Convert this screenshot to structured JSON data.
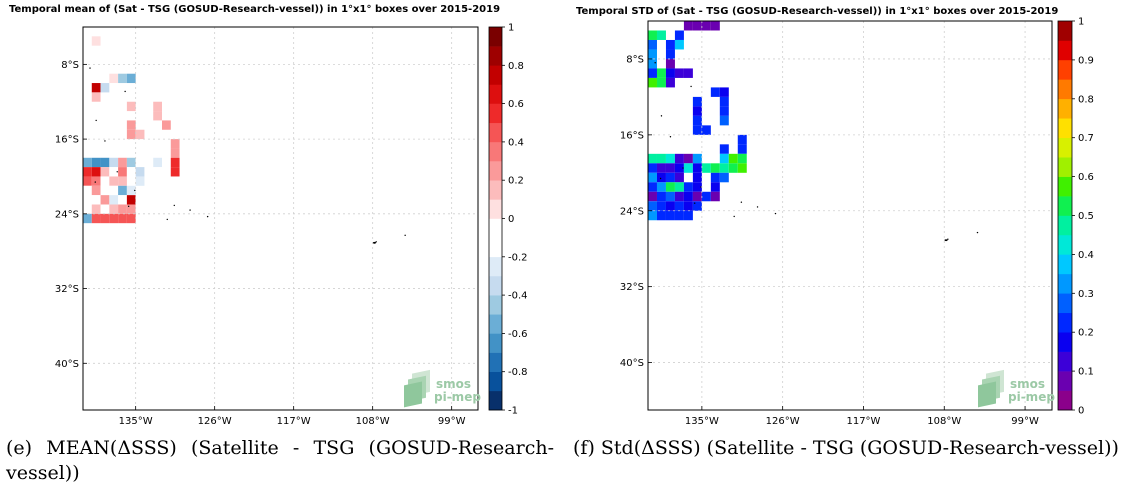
{
  "panels": [
    {
      "id": "e",
      "title": "Temporal mean of (Sat - TSG (GOSUD-Research-vessel)) in 1°x1° boxes over 2015-2019",
      "caption": "(e) MEAN(ΔSSS) (Satellite - TSG (GOSUD-Research-vessel))",
      "watermark": [
        "smos",
        "pi-mep"
      ]
    },
    {
      "id": "f",
      "title": "Temporal STD of (Sat - TSG (GOSUD-Research-vessel)) in 1°x1° boxes over 2015-2019",
      "caption": "(f) Std(ΔSSS) (Satellite - TSG (GOSUD-Research-vessel))",
      "watermark": [
        "smos",
        "pi-mep"
      ]
    }
  ],
  "chart_data": [
    {
      "type": "heatmap",
      "title": "Temporal mean of (Sat - TSG (GOSUD-Research-vessel)) in 1°x1° boxes over 2015-2019",
      "xlim": [
        -141,
        -96
      ],
      "ylim": [
        -45,
        -4
      ],
      "xticks": [
        {
          "value": -135,
          "label": "135°W"
        },
        {
          "value": -126,
          "label": "126°W"
        },
        {
          "value": -117,
          "label": "117°W"
        },
        {
          "value": -108,
          "label": "108°W"
        },
        {
          "value": -99,
          "label": "99°W"
        }
      ],
      "yticks": [
        {
          "value": -8,
          "label": "8°S"
        },
        {
          "value": -16,
          "label": "16°S"
        },
        {
          "value": -24,
          "label": "24°S"
        },
        {
          "value": -32,
          "label": "32°S"
        },
        {
          "value": -40,
          "label": "40°S"
        }
      ],
      "grid": true,
      "colorbar": {
        "min": -1,
        "max": 1,
        "ticks": [
          {
            "value": 1,
            "label": "1"
          },
          {
            "value": 0.8,
            "label": "0.8"
          },
          {
            "value": 0.6,
            "label": "0.6"
          },
          {
            "value": 0.4,
            "label": "0.4"
          },
          {
            "value": 0.2,
            "label": "0.2"
          },
          {
            "value": 0,
            "label": "0"
          },
          {
            "value": -0.2,
            "label": "-0.2"
          },
          {
            "value": -0.4,
            "label": "-0.4"
          },
          {
            "value": -0.6,
            "label": "-0.6"
          },
          {
            "value": -0.8,
            "label": "-0.8"
          },
          {
            "value": -1,
            "label": "-1"
          }
        ],
        "colors": [
          "#08306b",
          "#08519c",
          "#2171b5",
          "#4292c6",
          "#6baed6",
          "#9ecae1",
          "#c6dbef",
          "#deebf7",
          "#ffffff",
          "#ffffff",
          "#fee0e0",
          "#fcbcbc",
          "#fa9a9a",
          "#f87878",
          "#f55555",
          "#ee2a2a",
          "#dd0f0f",
          "#c20000",
          "#9e0000",
          "#7a0000"
        ]
      },
      "cells": [
        {
          "lon": -140,
          "lat": -5,
          "v": 0.05
        },
        {
          "lon": -137,
          "lat": -5,
          "v": -0.1
        },
        {
          "lon": -136,
          "lat": -5,
          "v": -0.15
        },
        {
          "lon": -139,
          "lat": -6,
          "v": -0.12
        },
        {
          "lon": -137,
          "lat": -6,
          "v": -0.15
        },
        {
          "lon": -138,
          "lat": -7,
          "v": -0.1
        },
        {
          "lon": -140,
          "lat": -8,
          "v": -0.13
        },
        {
          "lon": -138,
          "lat": -9,
          "v": 0.05
        },
        {
          "lon": -137,
          "lat": -9,
          "v": -0.5
        },
        {
          "lon": -136,
          "lat": -9,
          "v": -0.55
        },
        {
          "lon": -140,
          "lat": -10,
          "v": 0.7
        },
        {
          "lon": -139,
          "lat": -10,
          "v": -0.35
        },
        {
          "lon": -140,
          "lat": -11,
          "v": 0.1
        },
        {
          "lon": -136,
          "lat": -11,
          "v": -0.15
        },
        {
          "lon": -136,
          "lat": -12,
          "v": 0.1
        },
        {
          "lon": -133,
          "lat": -12,
          "v": 0.15
        },
        {
          "lon": -133,
          "lat": -13,
          "v": 0.12
        },
        {
          "lon": -136,
          "lat": -14,
          "v": 0.2
        },
        {
          "lon": -132,
          "lat": -14,
          "v": 0.2
        },
        {
          "lon": -136,
          "lat": -15,
          "v": 0.2
        },
        {
          "lon": -135,
          "lat": -15,
          "v": 0.15
        },
        {
          "lon": -131,
          "lat": -16,
          "v": 0.25
        },
        {
          "lon": -131,
          "lat": -17,
          "v": 0.25
        },
        {
          "lon": -141,
          "lat": -18,
          "v": -0.6
        },
        {
          "lon": -140,
          "lat": -18,
          "v": -0.65
        },
        {
          "lon": -139,
          "lat": -18,
          "v": -0.7
        },
        {
          "lon": -138,
          "lat": -18,
          "v": -0.35
        },
        {
          "lon": -137,
          "lat": -18,
          "v": 0.2
        },
        {
          "lon": -136,
          "lat": -18,
          "v": -0.45
        },
        {
          "lon": -135,
          "lat": -18,
          "v": -0.1
        },
        {
          "lon": -133,
          "lat": -18,
          "v": -0.25
        },
        {
          "lon": -132,
          "lat": -18,
          "v": -0.1
        },
        {
          "lon": -131,
          "lat": -18,
          "v": 0.5
        },
        {
          "lon": -141,
          "lat": -19,
          "v": 0.5
        },
        {
          "lon": -140,
          "lat": -19,
          "v": 0.6
        },
        {
          "lon": -139,
          "lat": -19,
          "v": 0.1
        },
        {
          "lon": -138,
          "lat": -19,
          "v": -0.15
        },
        {
          "lon": -137,
          "lat": -19,
          "v": 0.3
        },
        {
          "lon": -136,
          "lat": -19,
          "v": -0.1
        },
        {
          "lon": -135,
          "lat": -19,
          "v": -0.4
        },
        {
          "lon": -134,
          "lat": -19,
          "v": -0.1
        },
        {
          "lon": -133,
          "lat": -19,
          "v": -0.15
        },
        {
          "lon": -131,
          "lat": -19,
          "v": 0.5
        },
        {
          "lon": -141,
          "lat": -20,
          "v": 0.45
        },
        {
          "lon": -140,
          "lat": -20,
          "v": 0.3
        },
        {
          "lon": -139,
          "lat": -20,
          "v": -0.1
        },
        {
          "lon": -138,
          "lat": -20,
          "v": 0.15
        },
        {
          "lon": -137,
          "lat": -20,
          "v": 0.15
        },
        {
          "lon": -135,
          "lat": -20,
          "v": -0.25
        },
        {
          "lon": -141,
          "lat": -21,
          "v": -0.2
        },
        {
          "lon": -140,
          "lat": -21,
          "v": 0.2
        },
        {
          "lon": -139,
          "lat": -21,
          "v": -0.1
        },
        {
          "lon": -138,
          "lat": -21,
          "v": -0.15
        },
        {
          "lon": -137,
          "lat": -21,
          "v": -0.55
        },
        {
          "lon": -136,
          "lat": -21,
          "v": -0.3
        },
        {
          "lon": -133,
          "lat": -21,
          "v": -0.15
        },
        {
          "lon": -141,
          "lat": -22,
          "v": -0.15
        },
        {
          "lon": -140,
          "lat": -22,
          "v": -0.1
        },
        {
          "lon": -139,
          "lat": -22,
          "v": 0.2
        },
        {
          "lon": -138,
          "lat": -22,
          "v": -0.25
        },
        {
          "lon": -137,
          "lat": -22,
          "v": -0.1
        },
        {
          "lon": -136,
          "lat": -22,
          "v": 0.75
        },
        {
          "lon": -135,
          "lat": -22,
          "v": -0.15
        },
        {
          "lon": -141,
          "lat": -23,
          "v": -0.1
        },
        {
          "lon": -140,
          "lat": -23,
          "v": 0.1
        },
        {
          "lon": -139,
          "lat": -23,
          "v": -0.12
        },
        {
          "lon": -138,
          "lat": -23,
          "v": 0.15
        },
        {
          "lon": -137,
          "lat": -23,
          "v": 0.25
        },
        {
          "lon": -136,
          "lat": -23,
          "v": 0.2
        },
        {
          "lon": -135,
          "lat": -23,
          "v": -0.2
        },
        {
          "lon": -134,
          "lat": -23,
          "v": -0.2
        },
        {
          "lon": -141,
          "lat": -24,
          "v": -0.55
        },
        {
          "lon": -140,
          "lat": -24,
          "v": 0.4
        },
        {
          "lon": -139,
          "lat": -24,
          "v": 0.45
        },
        {
          "lon": -138,
          "lat": -24,
          "v": 0.4
        },
        {
          "lon": -137,
          "lat": -24,
          "v": 0.4
        },
        {
          "lon": -136,
          "lat": -24,
          "v": 0.45
        }
      ],
      "watermark": [
        "smos",
        "pi-mep"
      ]
    },
    {
      "type": "heatmap",
      "title": "Temporal STD of (Sat - TSG (GOSUD-Research-vessel)) in 1°x1° boxes over 2015-2019",
      "xlim": [
        -141,
        -96
      ],
      "ylim": [
        -45,
        -4
      ],
      "xticks": [
        {
          "value": -135,
          "label": "135°W"
        },
        {
          "value": -126,
          "label": "126°W"
        },
        {
          "value": -117,
          "label": "117°W"
        },
        {
          "value": -108,
          "label": "108°W"
        },
        {
          "value": -99,
          "label": "99°W"
        }
      ],
      "yticks": [
        {
          "value": -8,
          "label": "8°S"
        },
        {
          "value": -16,
          "label": "16°S"
        },
        {
          "value": -24,
          "label": "24°S"
        },
        {
          "value": -32,
          "label": "32°S"
        },
        {
          "value": -40,
          "label": "40°S"
        }
      ],
      "grid": true,
      "colorbar": {
        "min": 0,
        "max": 1,
        "ticks": [
          {
            "value": 1,
            "label": "1"
          },
          {
            "value": 0.9,
            "label": "0.9"
          },
          {
            "value": 0.8,
            "label": "0.8"
          },
          {
            "value": 0.7,
            "label": "0.7"
          },
          {
            "value": 0.6,
            "label": "0.6"
          },
          {
            "value": 0.5,
            "label": "0.5"
          },
          {
            "value": 0.4,
            "label": "0.4"
          },
          {
            "value": 0.3,
            "label": "0.3"
          },
          {
            "value": 0.2,
            "label": "0.2"
          },
          {
            "value": 0.1,
            "label": "0.1"
          },
          {
            "value": 0,
            "label": "0"
          }
        ],
        "colors": [
          "#8b008b",
          "#6a00b0",
          "#3c00d8",
          "#0a00f0",
          "#0028ff",
          "#0060ff",
          "#0098ff",
          "#00c8ff",
          "#00e8d8",
          "#00f0a0",
          "#10f050",
          "#40f000",
          "#a0f000",
          "#d8f000",
          "#ffe000",
          "#ffb000",
          "#ff7a00",
          "#ff4000",
          "#e00000",
          "#a00000"
        ]
      },
      "cells": [
        {
          "lon": -137,
          "lat": -4,
          "v": 0.05
        },
        {
          "lon": -136,
          "lat": -4,
          "v": 0.05
        },
        {
          "lon": -135,
          "lat": -4,
          "v": 0.05
        },
        {
          "lon": -134,
          "lat": -4,
          "v": 0.05
        },
        {
          "lon": -141,
          "lat": -5,
          "v": 0.5
        },
        {
          "lon": -140,
          "lat": -5,
          "v": 0.45
        },
        {
          "lon": -138,
          "lat": -5,
          "v": 0.2
        },
        {
          "lon": -141,
          "lat": -6,
          "v": 0.25
        },
        {
          "lon": -139,
          "lat": -6,
          "v": 0.2
        },
        {
          "lon": -138,
          "lat": -6,
          "v": 0.35
        },
        {
          "lon": -141,
          "lat": -7,
          "v": 0.3
        },
        {
          "lon": -139,
          "lat": -7,
          "v": 0.2
        },
        {
          "lon": -141,
          "lat": -8,
          "v": 0.3
        },
        {
          "lon": -139,
          "lat": -8,
          "v": 0.05
        },
        {
          "lon": -141,
          "lat": -9,
          "v": 0.2
        },
        {
          "lon": -140,
          "lat": -9,
          "v": 0.5
        },
        {
          "lon": -139,
          "lat": -9,
          "v": 0.15
        },
        {
          "lon": -138,
          "lat": -9,
          "v": 0.1
        },
        {
          "lon": -137,
          "lat": -9,
          "v": 0.1
        },
        {
          "lon": -141,
          "lat": -10,
          "v": 0.55
        },
        {
          "lon": -140,
          "lat": -10,
          "v": 0.5
        },
        {
          "lon": -139,
          "lat": -10,
          "v": 0.1
        },
        {
          "lon": -134,
          "lat": -11,
          "v": 0.2
        },
        {
          "lon": -133,
          "lat": -11,
          "v": 0.15
        },
        {
          "lon": -136,
          "lat": -12,
          "v": 0.2
        },
        {
          "lon": -133,
          "lat": -12,
          "v": 0.2
        },
        {
          "lon": -136,
          "lat": -13,
          "v": 0.15
        },
        {
          "lon": -133,
          "lat": -13,
          "v": 0.2
        },
        {
          "lon": -136,
          "lat": -14,
          "v": 0.2
        },
        {
          "lon": -133,
          "lat": -14,
          "v": 0.25
        },
        {
          "lon": -136,
          "lat": -15,
          "v": 0.2
        },
        {
          "lon": -135,
          "lat": -15,
          "v": 0.2
        },
        {
          "lon": -131,
          "lat": -16,
          "v": 0.2
        },
        {
          "lon": -133,
          "lat": -17,
          "v": 0.2
        },
        {
          "lon": -131,
          "lat": -17,
          "v": 0.2
        },
        {
          "lon": -141,
          "lat": -18,
          "v": 0.45
        },
        {
          "lon": -140,
          "lat": -18,
          "v": 0.45
        },
        {
          "lon": -139,
          "lat": -18,
          "v": 0.4
        },
        {
          "lon": -138,
          "lat": -18,
          "v": 0.1
        },
        {
          "lon": -137,
          "lat": -18,
          "v": 0.05
        },
        {
          "lon": -136,
          "lat": -18,
          "v": 0.3
        },
        {
          "lon": -133,
          "lat": -18,
          "v": 0.35
        },
        {
          "lon": -132,
          "lat": -18,
          "v": 0.55
        },
        {
          "lon": -131,
          "lat": -18,
          "v": 0.5
        },
        {
          "lon": -141,
          "lat": -19,
          "v": 0.2
        },
        {
          "lon": -140,
          "lat": -19,
          "v": 0.1
        },
        {
          "lon": -139,
          "lat": -19,
          "v": 0.1
        },
        {
          "lon": -138,
          "lat": -19,
          "v": 0.15
        },
        {
          "lon": -137,
          "lat": -19,
          "v": 0.4
        },
        {
          "lon": -136,
          "lat": -19,
          "v": 0.15
        },
        {
          "lon": -135,
          "lat": -19,
          "v": 0.45
        },
        {
          "lon": -134,
          "lat": -19,
          "v": 0.5
        },
        {
          "lon": -133,
          "lat": -19,
          "v": 0.45
        },
        {
          "lon": -132,
          "lat": -19,
          "v": 0.5
        },
        {
          "lon": -131,
          "lat": -19,
          "v": 0.55
        },
        {
          "lon": -141,
          "lat": -20,
          "v": 0.3
        },
        {
          "lon": -140,
          "lat": -20,
          "v": 0.15
        },
        {
          "lon": -139,
          "lat": -20,
          "v": 0.2
        },
        {
          "lon": -138,
          "lat": -20,
          "v": 0.1
        },
        {
          "lon": -136,
          "lat": -20,
          "v": 0.15
        },
        {
          "lon": -134,
          "lat": -20,
          "v": 0.2
        },
        {
          "lon": -133,
          "lat": -20,
          "v": 0.25
        },
        {
          "lon": -141,
          "lat": -21,
          "v": 0.2
        },
        {
          "lon": -140,
          "lat": -21,
          "v": 0.3
        },
        {
          "lon": -139,
          "lat": -21,
          "v": 0.5
        },
        {
          "lon": -138,
          "lat": -21,
          "v": 0.45
        },
        {
          "lon": -137,
          "lat": -21,
          "v": 0.2
        },
        {
          "lon": -136,
          "lat": -21,
          "v": 0.15
        },
        {
          "lon": -134,
          "lat": -21,
          "v": 0.15
        },
        {
          "lon": -141,
          "lat": -22,
          "v": 0.05
        },
        {
          "lon": -140,
          "lat": -22,
          "v": 0.2
        },
        {
          "lon": -139,
          "lat": -22,
          "v": 0.25
        },
        {
          "lon": -138,
          "lat": -22,
          "v": 0.1
        },
        {
          "lon": -137,
          "lat": -22,
          "v": 0.15
        },
        {
          "lon": -136,
          "lat": -22,
          "v": 0.05
        },
        {
          "lon": -135,
          "lat": -22,
          "v": 0.2
        },
        {
          "lon": -134,
          "lat": -22,
          "v": 0.05
        },
        {
          "lon": -141,
          "lat": -23,
          "v": 0.25
        },
        {
          "lon": -140,
          "lat": -23,
          "v": 0.2
        },
        {
          "lon": -139,
          "lat": -23,
          "v": 0.15
        },
        {
          "lon": -138,
          "lat": -23,
          "v": 0.2
        },
        {
          "lon": -137,
          "lat": -23,
          "v": 0.15
        },
        {
          "lon": -136,
          "lat": -23,
          "v": 0.2
        },
        {
          "lon": -141,
          "lat": -24,
          "v": 0.3
        },
        {
          "lon": -140,
          "lat": -24,
          "v": 0.2
        },
        {
          "lon": -139,
          "lat": -24,
          "v": 0.2
        },
        {
          "lon": -138,
          "lat": -24,
          "v": 0.2
        },
        {
          "lon": -137,
          "lat": -24,
          "v": 0.2
        }
      ],
      "watermark": [
        "smos",
        "pi-mep"
      ]
    }
  ]
}
